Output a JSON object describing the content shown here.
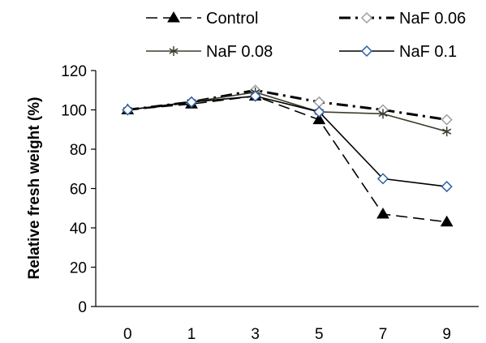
{
  "chart_data": {
    "type": "line",
    "title": "",
    "xlabel": "",
    "ylabel": "Relative fresh weight (%)",
    "categories": [
      "0",
      "1",
      "3",
      "5",
      "7",
      "9"
    ],
    "ylim": [
      0,
      120
    ],
    "yticks": [
      0,
      20,
      40,
      60,
      80,
      100,
      120
    ],
    "grid": false,
    "legend_position": "top",
    "series": [
      {
        "name": "Control",
        "values": [
          100,
          103,
          107,
          95,
          47,
          43
        ],
        "marker": "filled-triangle",
        "line_style": "dashed",
        "color": "#000000"
      },
      {
        "name": "NaF 0.06",
        "values": [
          100,
          104,
          110,
          104,
          100,
          95
        ],
        "marker": "open-diamond",
        "line_style": "dash-dot",
        "color": "#000000",
        "marker_color": "#9e9e9e"
      },
      {
        "name": "NaF 0.08",
        "values": [
          100,
          104,
          109,
          99,
          98,
          89
        ],
        "marker": "asterisk",
        "line_style": "solid",
        "color": "#3d3d2e"
      },
      {
        "name": "NaF 0.1",
        "values": [
          100,
          104,
          107,
          99,
          65,
          61
        ],
        "marker": "open-diamond",
        "line_style": "solid",
        "color": "#000000",
        "marker_color": "#2e5fa6"
      }
    ]
  }
}
